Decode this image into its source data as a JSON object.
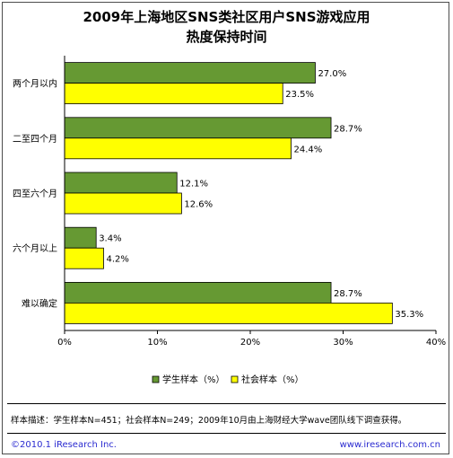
{
  "title_lines": [
    "2009年上海地区SNS类社区用户SNS游戏应用",
    "热度保持时间"
  ],
  "note": "样本描述：学生样本N=451；社会样本N=249；2009年10月由上海财经大学wave团队线下调查获得。",
  "copyright": "©2010.1 iResearch Inc.",
  "website": "www.iresearch.com.cn",
  "chart_data": {
    "type": "bar",
    "orientation": "horizontal",
    "categories": [
      "两个月以内",
      "二至四个月",
      "四至六个月",
      "六个月以上",
      "难以确定"
    ],
    "series": [
      {
        "name": "学生样本（%）",
        "values": [
          27.0,
          28.7,
          12.1,
          3.4,
          28.7
        ],
        "color": "#669933",
        "labels": [
          "27.0%",
          "28.7%",
          "12.1%",
          "3.4%",
          "28.7%"
        ]
      },
      {
        "name": "社会样本（%）",
        "values": [
          23.5,
          24.4,
          12.6,
          4.2,
          35.3
        ],
        "color": "#ffff00",
        "labels": [
          "23.5%",
          "24.4%",
          "12.6%",
          "4.2%",
          "35.3%"
        ]
      }
    ],
    "xlim": [
      0,
      40
    ],
    "xticks": [
      0,
      10,
      20,
      30,
      40
    ],
    "xtick_labels": [
      "0%",
      "10%",
      "20%",
      "30%",
      "40%"
    ],
    "grid": false,
    "legend_position": "bottom"
  }
}
